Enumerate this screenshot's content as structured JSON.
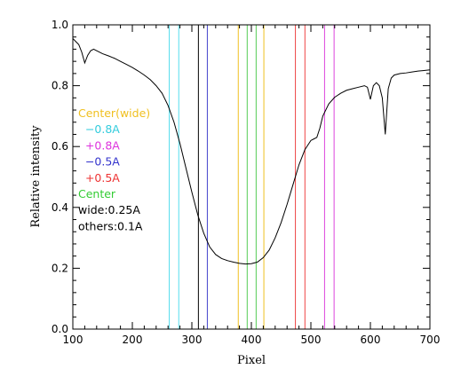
{
  "chart_data": {
    "type": "line",
    "xlabel": "Pixel",
    "ylabel": "Relative intensity",
    "xlim": [
      100,
      700
    ],
    "ylim": [
      0.0,
      1.0
    ],
    "grid": false,
    "x_ticks": [
      100,
      200,
      300,
      400,
      500,
      600,
      700
    ],
    "x_tick_labels": [
      "100",
      "200",
      "300",
      "400",
      "500",
      "600",
      "700"
    ],
    "y_ticks": [
      0.0,
      0.2,
      0.4,
      0.6,
      0.8,
      1.0
    ],
    "y_tick_labels": [
      "0.0",
      "0.2",
      "0.4",
      "0.6",
      "0.8",
      "1.0"
    ],
    "series": [
      {
        "color": "#000000",
        "x": [
          100,
          105,
          110,
          115,
          120,
          125,
          130,
          135,
          140,
          150,
          160,
          170,
          180,
          190,
          200,
          210,
          220,
          230,
          240,
          250,
          260,
          270,
          280,
          290,
          300,
          310,
          320,
          330,
          340,
          350,
          360,
          370,
          380,
          390,
          400,
          410,
          420,
          430,
          440,
          450,
          460,
          470,
          480,
          490,
          500,
          505,
          510,
          515,
          520,
          530,
          540,
          550,
          560,
          570,
          580,
          590,
          595,
          600,
          605,
          610,
          615,
          620,
          625,
          630,
          635,
          640,
          650,
          660,
          670,
          680,
          690,
          700
        ],
        "y": [
          0.955,
          0.945,
          0.935,
          0.91,
          0.875,
          0.9,
          0.915,
          0.92,
          0.915,
          0.905,
          0.898,
          0.89,
          0.88,
          0.87,
          0.86,
          0.848,
          0.835,
          0.82,
          0.8,
          0.775,
          0.735,
          0.68,
          0.61,
          0.53,
          0.45,
          0.375,
          0.315,
          0.27,
          0.245,
          0.232,
          0.225,
          0.22,
          0.216,
          0.214,
          0.215,
          0.22,
          0.235,
          0.26,
          0.3,
          0.35,
          0.41,
          0.475,
          0.54,
          0.59,
          0.62,
          0.625,
          0.63,
          0.66,
          0.7,
          0.74,
          0.762,
          0.775,
          0.785,
          0.79,
          0.795,
          0.8,
          0.795,
          0.755,
          0.8,
          0.81,
          0.8,
          0.76,
          0.64,
          0.79,
          0.825,
          0.835,
          0.84,
          0.842,
          0.845,
          0.848,
          0.85,
          0.852
        ]
      }
    ],
    "vertical_lines": [
      {
        "x": 262,
        "color": "#55ddee"
      },
      {
        "x": 278,
        "color": "#55ddee"
      },
      {
        "x": 311,
        "color": "#000000"
      },
      {
        "x": 326,
        "color": "#4444cc"
      },
      {
        "x": 378,
        "color": "#f0c020"
      },
      {
        "x": 393,
        "color": "#55cc55"
      },
      {
        "x": 408,
        "color": "#55cc55"
      },
      {
        "x": 421,
        "color": "#f0c020"
      },
      {
        "x": 474,
        "color": "#ee4444"
      },
      {
        "x": 490,
        "color": "#ee4444"
      },
      {
        "x": 523,
        "color": "#dd44dd"
      },
      {
        "x": 539,
        "color": "#dd44dd"
      }
    ],
    "legend": {
      "placement": "left-middle",
      "entries": [
        {
          "text": "Center(wide)",
          "color": "#f0c020"
        },
        {
          "text": "  −0.8A",
          "color": "#33ccdd"
        },
        {
          "text": "  +0.8A",
          "color": "#dd33dd"
        },
        {
          "text": "  −0.5A",
          "color": "#3333cc"
        },
        {
          "text": "  +0.5A",
          "color": "#ee3333"
        },
        {
          "text": "Center",
          "color": "#33cc33"
        },
        {
          "text": "wide:0.25A",
          "color": "#000000"
        },
        {
          "text": "others:0.1A",
          "color": "#000000"
        }
      ]
    }
  }
}
